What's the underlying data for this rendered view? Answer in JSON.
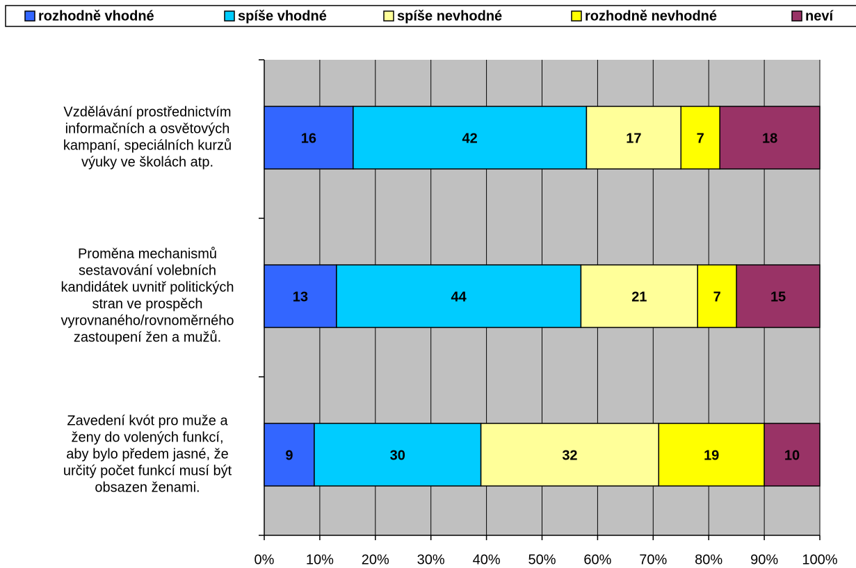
{
  "chart_data": {
    "type": "stacked-bar-horizontal",
    "categories": [
      [
        "Vzdělávání prostřednictvím",
        "informačních a osvětových",
        "kampaní, speciálních kurzů",
        "výuky ve školách atp."
      ],
      [
        "Proměna mechanismů",
        "sestavování volebních",
        "kandidátek uvnitř politických",
        "stran ve prospěch",
        "vyrovnaného/rovnoměrného",
        "zastoupení žen a mužů."
      ],
      [
        "Zavedení kvót pro muže a",
        "ženy do volených funkcí,",
        "aby bylo předem jasné, že",
        "určitý počet funkcí musí být",
        "obsazen ženami."
      ]
    ],
    "series": [
      {
        "name": "rozhodně vhodné",
        "color": "#3366ff",
        "values": [
          16,
          13,
          9
        ]
      },
      {
        "name": "spíše vhodné",
        "color": "#00ccff",
        "values": [
          42,
          44,
          30
        ]
      },
      {
        "name": "spíše nevhodné",
        "color": "#ffff99",
        "values": [
          17,
          21,
          32
        ]
      },
      {
        "name": "rozhodně nevhodné",
        "color": "#ffff00",
        "values": [
          7,
          7,
          19
        ]
      },
      {
        "name": "neví",
        "color": "#993366",
        "values": [
          18,
          15,
          10
        ]
      }
    ],
    "xlim": [
      0,
      100
    ],
    "xticks": [
      {
        "value": 0,
        "label": "0%"
      },
      {
        "value": 10,
        "label": "10%"
      },
      {
        "value": 20,
        "label": "20%"
      },
      {
        "value": 30,
        "label": "30%"
      },
      {
        "value": 40,
        "label": "40%"
      },
      {
        "value": 50,
        "label": "50%"
      },
      {
        "value": 60,
        "label": "60%"
      },
      {
        "value": 70,
        "label": "70%"
      },
      {
        "value": 80,
        "label": "80%"
      },
      {
        "value": 90,
        "label": "90%"
      },
      {
        "value": 100,
        "label": "100%"
      }
    ],
    "grid": true,
    "legend": "top"
  }
}
